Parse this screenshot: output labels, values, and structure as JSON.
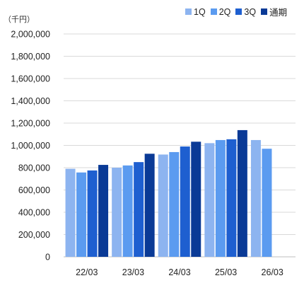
{
  "chart_data": {
    "type": "bar",
    "unit_label": "（千円）",
    "categories": [
      "22/03",
      "23/03",
      "24/03",
      "25/03",
      "26/03"
    ],
    "y_ticks": [
      "0",
      "200,000",
      "400,000",
      "600,000",
      "800,000",
      "1,000,000",
      "1,200,000",
      "1,400,000",
      "1,600,000",
      "1,800,000",
      "2,000,000"
    ],
    "ylim": [
      0,
      2000000
    ],
    "ystep": 200000,
    "grid": true,
    "legend_position": "top-right",
    "series": [
      {
        "name": "1Q",
        "color": "#8db4f0",
        "values": [
          790000,
          800000,
          918000,
          1020000,
          1048000
        ]
      },
      {
        "name": "2Q",
        "color": "#5b9bf0",
        "values": [
          757000,
          820000,
          940000,
          1048000,
          970000
        ]
      },
      {
        "name": "3Q",
        "color": "#1e5fd0",
        "values": [
          775000,
          850000,
          990000,
          1055000,
          null
        ]
      },
      {
        "name": "通期",
        "color": "#0a3a96",
        "values": [
          825000,
          925000,
          1033000,
          1137000,
          null
        ]
      }
    ]
  }
}
